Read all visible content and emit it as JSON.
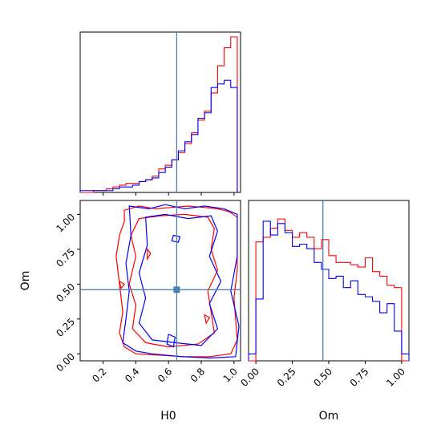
{
  "chart_data": {
    "type": "corner",
    "parameters": [
      "H0",
      "Om"
    ],
    "truth": {
      "H0": 0.65,
      "Om": 0.46
    },
    "colors": {
      "series_a": "#ff0000",
      "series_b": "#0000ff",
      "truth": "#4a7fb0"
    },
    "panels": [
      {
        "id": "hist-h0",
        "type": "histogram",
        "xlim": [
          0.06,
          1.04
        ],
        "bins": [
          0.06,
          0.1,
          0.14,
          0.18,
          0.22,
          0.26,
          0.3,
          0.34,
          0.38,
          0.42,
          0.46,
          0.5,
          0.54,
          0.58,
          0.62,
          0.66,
          0.7,
          0.74,
          0.78,
          0.82,
          0.86,
          0.9,
          0.94,
          0.98,
          1.02
        ],
        "series": [
          {
            "color": "red",
            "counts": [
              0,
              0,
              1,
              1,
              2,
              3,
              4,
              5,
              5,
              6,
              7,
              9,
              13,
              15,
              18,
              22,
              27,
              33,
              40,
              45,
              55,
              70,
              80,
              86,
              0
            ]
          },
          {
            "color": "blue",
            "counts": [
              1,
              1,
              1,
              1,
              1,
              2,
              3,
              3,
              4,
              6,
              7,
              8,
              11,
              14,
              18,
              23,
              28,
              32,
              41,
              44,
              58,
              60,
              62,
              58,
              0
            ]
          }
        ]
      },
      {
        "id": "hist-om",
        "type": "histogram",
        "xlim": [
          -0.05,
          1.05
        ],
        "bins": [
          -0.05,
          0.0,
          0.05,
          0.1,
          0.15,
          0.2,
          0.25,
          0.3,
          0.35,
          0.4,
          0.45,
          0.5,
          0.55,
          0.6,
          0.65,
          0.7,
          0.75,
          0.8,
          0.85,
          0.9,
          0.95,
          1.0,
          1.05
        ],
        "series": [
          {
            "color": "red",
            "counts": [
              0,
              52,
              54,
              58,
              62,
              57,
              54,
              56,
              54,
              49,
              53,
              46,
              43,
              43,
              42,
              41,
              45,
              39,
              37,
              33,
              32,
              0
            ]
          },
          {
            "color": "blue",
            "counts": [
              3,
              27,
              61,
              55,
              60,
              56,
              50,
              51,
              49,
              43,
              40,
              36,
              37,
              32,
              35,
              29,
              28,
              26,
              21,
              25,
              13,
              3
            ]
          }
        ]
      },
      {
        "id": "contour-h0-om",
        "type": "contour",
        "xlim": [
          0.06,
          1.04
        ],
        "ylim": [
          -0.05,
          1.1
        ],
        "xticks": [
          0.2,
          0.4,
          0.6,
          0.8,
          1.0
        ],
        "yticks": [
          0.0,
          0.25,
          0.5,
          0.75,
          1.0
        ]
      }
    ],
    "ticks": {
      "h0": [
        "0.2",
        "0.4",
        "0.6",
        "0.8",
        "1.0"
      ],
      "om": [
        "0.00",
        "0.25",
        "0.50",
        "0.75",
        "1.00"
      ]
    },
    "xlabel_h0": "H0",
    "xlabel_om": "Om",
    "ylabel_om": "Om"
  }
}
